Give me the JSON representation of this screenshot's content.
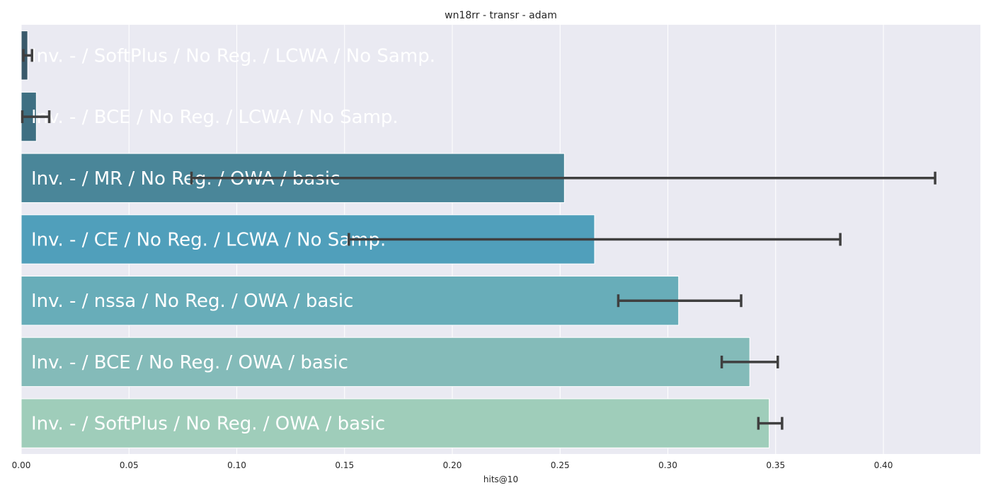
{
  "chart_data": {
    "type": "bar",
    "orientation": "horizontal",
    "title": "wn18rr - transr - adam",
    "xlabel": "hits@10",
    "ylabel": "",
    "xlim": [
      0,
      0.445
    ],
    "xticks": [
      0.0,
      0.05,
      0.1,
      0.15,
      0.2,
      0.25,
      0.3,
      0.35,
      0.4
    ],
    "xtick_labels": [
      "0.00",
      "0.05",
      "0.10",
      "0.15",
      "0.20",
      "0.25",
      "0.30",
      "0.35",
      "0.40"
    ],
    "grid": true,
    "categories": [
      "Inv. - / SoftPlus / No Reg. / LCWA / No Samp.",
      "Inv. - / BCE / No Reg. / LCWA / No Samp.",
      "Inv. - / MR / No Reg. / OWA / basic",
      "Inv. - / CE / No Reg. / LCWA / No Samp.",
      "Inv. - / nssa / No Reg. / OWA / basic",
      "Inv. - / BCE / No Reg. / OWA / basic",
      "Inv. - / SoftPlus / No Reg. / OWA / basic"
    ],
    "values": [
      0.003,
      0.007,
      0.252,
      0.266,
      0.305,
      0.338,
      0.347
    ],
    "error_low": [
      0.001,
      0.0005,
      0.079,
      0.152,
      0.277,
      0.325,
      0.342
    ],
    "error_high": [
      0.005,
      0.013,
      0.424,
      0.38,
      0.334,
      0.351,
      0.353
    ],
    "colors": [
      "#3a5a6b",
      "#3e6f82",
      "#4a8699",
      "#509fbb",
      "#68adb9",
      "#84bbb9",
      "#9fcdba"
    ]
  }
}
